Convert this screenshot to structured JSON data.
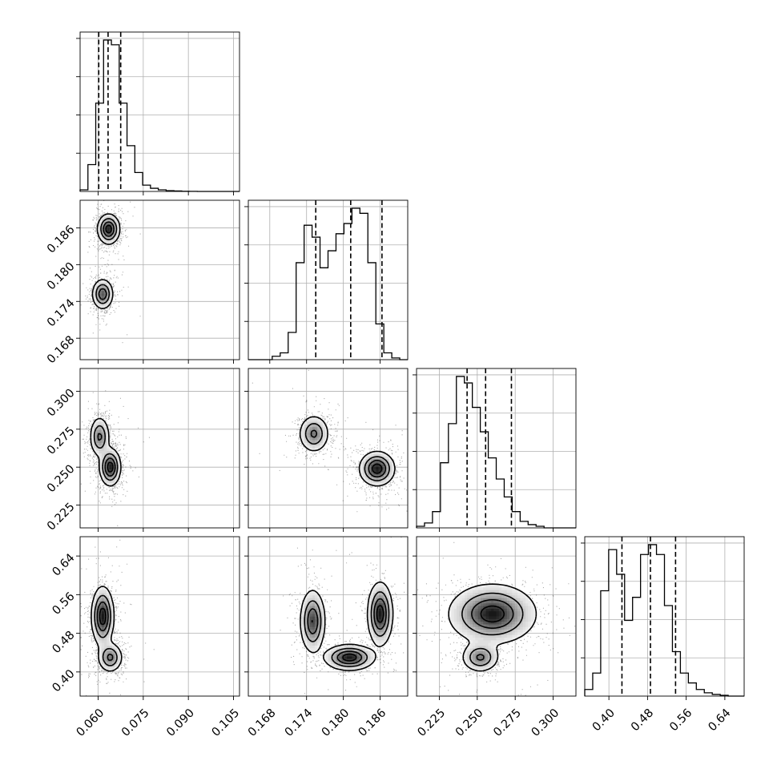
{
  "chart_data": {
    "type": "corner",
    "title": "",
    "grid": true,
    "parameters": [
      {
        "index": 0,
        "range": [
          0.054,
          0.107
        ],
        "ticks": [
          "0.060",
          "0.075",
          "0.090",
          "0.105"
        ],
        "tick_values": [
          0.06,
          0.075,
          0.09,
          0.105
        ]
      },
      {
        "index": 1,
        "range": [
          0.1645,
          0.1905
        ],
        "ticks": [
          "0.168",
          "0.174",
          "0.180",
          "0.186"
        ],
        "tick_values": [
          0.168,
          0.174,
          0.18,
          0.186
        ]
      },
      {
        "index": 2,
        "range": [
          0.21,
          0.315
        ],
        "ticks": [
          "0.225",
          "0.250",
          "0.275",
          "0.300"
        ],
        "tick_values": [
          0.225,
          0.25,
          0.275,
          0.3
        ]
      },
      {
        "index": 3,
        "range": [
          0.35,
          0.68
        ],
        "ticks": [
          "0.40",
          "0.48",
          "0.56",
          "0.64"
        ],
        "tick_values": [
          0.4,
          0.48,
          0.56,
          0.64
        ]
      }
    ],
    "quantiles": [
      [
        0.0602,
        0.0633,
        0.0675
      ],
      [
        0.1755,
        0.1812,
        0.1863
      ],
      [
        0.2433,
        0.2555,
        0.2725
      ],
      [
        0.427,
        0.486,
        0.538
      ]
    ],
    "histograms": [
      {
        "edges_start": 0.054,
        "bin_width": 0.0026,
        "counts": [
          0.01,
          0.17,
          0.56,
          0.96,
          0.93,
          0.56,
          0.29,
          0.12,
          0.04,
          0.02,
          0.01,
          0.005,
          0.003,
          0.001,
          0.0005,
          0.0,
          0.0,
          0.0,
          0.0,
          0.0
        ]
      },
      {
        "edges_start": 0.1645,
        "bin_width": 0.0013,
        "counts": [
          0.0,
          0.0,
          0.0,
          0.02,
          0.04,
          0.16,
          0.57,
          0.79,
          0.72,
          0.54,
          0.64,
          0.74,
          0.8,
          0.89,
          0.86,
          0.57,
          0.21,
          0.04,
          0.01,
          0.0
        ]
      },
      {
        "edges_start": 0.21,
        "bin_width": 0.00525,
        "counts": [
          0.01,
          0.03,
          0.1,
          0.4,
          0.64,
          0.93,
          0.89,
          0.74,
          0.59,
          0.43,
          0.3,
          0.19,
          0.1,
          0.04,
          0.02,
          0.01,
          0.0,
          0.0,
          0.0,
          0.0
        ]
      },
      {
        "edges_start": 0.35,
        "bin_width": 0.0165,
        "counts": [
          0.04,
          0.14,
          0.64,
          0.89,
          0.74,
          0.46,
          0.6,
          0.86,
          0.92,
          0.86,
          0.55,
          0.27,
          0.14,
          0.08,
          0.04,
          0.02,
          0.01,
          0.005,
          0.0,
          0.0
        ]
      }
    ],
    "joint_panels": [
      {
        "x_param": 0,
        "y_param": 1,
        "modes": [
          {
            "x": 0.0615,
            "y": 0.1752,
            "sx": 0.0017,
            "sy": 0.0012,
            "w": 0.45
          },
          {
            "x": 0.0635,
            "y": 0.1858,
            "sx": 0.0018,
            "sy": 0.0012,
            "w": 0.55
          }
        ]
      },
      {
        "x_param": 0,
        "y_param": 2,
        "modes": [
          {
            "x": 0.0605,
            "y": 0.27,
            "sx": 0.0016,
            "sy": 0.0065,
            "w": 0.4
          },
          {
            "x": 0.064,
            "y": 0.25,
            "sx": 0.0017,
            "sy": 0.006,
            "w": 0.6
          }
        ]
      },
      {
        "x_param": 1,
        "y_param": 2,
        "modes": [
          {
            "x": 0.1752,
            "y": 0.272,
            "sx": 0.0012,
            "sy": 0.006,
            "w": 0.4
          },
          {
            "x": 0.1855,
            "y": 0.249,
            "sx": 0.0014,
            "sy": 0.0055,
            "w": 0.6
          }
        ]
      },
      {
        "x_param": 0,
        "y_param": 3,
        "modes": [
          {
            "x": 0.0615,
            "y": 0.515,
            "sx": 0.0018,
            "sy": 0.03,
            "w": 0.6
          },
          {
            "x": 0.064,
            "y": 0.43,
            "sx": 0.002,
            "sy": 0.015,
            "w": 0.4
          }
        ]
      },
      {
        "x_param": 1,
        "y_param": 3,
        "modes": [
          {
            "x": 0.175,
            "y": 0.505,
            "sx": 0.001,
            "sy": 0.032,
            "w": 0.3
          },
          {
            "x": 0.186,
            "y": 0.52,
            "sx": 0.001,
            "sy": 0.032,
            "w": 0.35
          },
          {
            "x": 0.181,
            "y": 0.43,
            "sx": 0.002,
            "sy": 0.013,
            "w": 0.35
          }
        ]
      },
      {
        "x_param": 2,
        "y_param": 3,
        "modes": [
          {
            "x": 0.26,
            "y": 0.52,
            "sx": 0.014,
            "sy": 0.03,
            "w": 0.6
          },
          {
            "x": 0.252,
            "y": 0.43,
            "sx": 0.006,
            "sy": 0.015,
            "w": 0.4
          }
        ]
      }
    ]
  }
}
